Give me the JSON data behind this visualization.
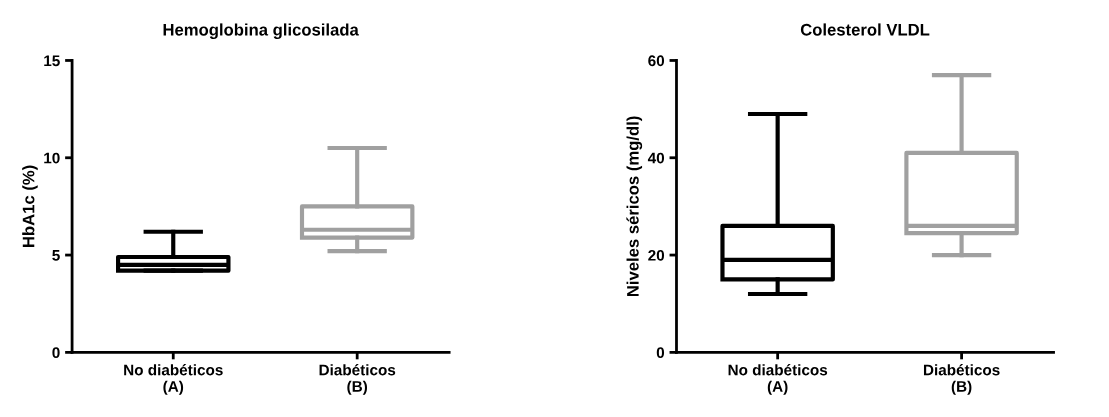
{
  "chart_data": [
    {
      "type": "box",
      "title": "Hemoglobina glicosilada",
      "ylabel": "HbA1c (%)",
      "categories": [
        "No diabéticos\n(A)",
        "Diabéticos\n(B)"
      ],
      "colors": [
        "#000000",
        "#a0a0a0"
      ],
      "ylim": [
        0,
        15
      ],
      "yticks": [
        0,
        5,
        10,
        15
      ],
      "grid": false,
      "boxes": [
        {
          "low": 4.2,
          "q1": 4.2,
          "median": 4.5,
          "q3": 4.9,
          "high": 6.2
        },
        {
          "low": 5.2,
          "q1": 5.9,
          "median": 6.3,
          "q3": 7.5,
          "high": 10.5
        }
      ]
    },
    {
      "type": "box",
      "title": "Colesterol VLDL",
      "ylabel": "Niveles séricos (mg/dl)",
      "categories": [
        "No diabéticos\n(A)",
        "Diabéticos\n(B)"
      ],
      "colors": [
        "#000000",
        "#a0a0a0"
      ],
      "ylim": [
        0,
        60
      ],
      "yticks": [
        0,
        20,
        40,
        60
      ],
      "grid": false,
      "boxes": [
        {
          "low": 12,
          "q1": 15,
          "median": 19,
          "q3": 26,
          "high": 49
        },
        {
          "low": 20,
          "q1": 24.5,
          "median": 26,
          "q3": 41,
          "high": 57
        }
      ]
    }
  ]
}
